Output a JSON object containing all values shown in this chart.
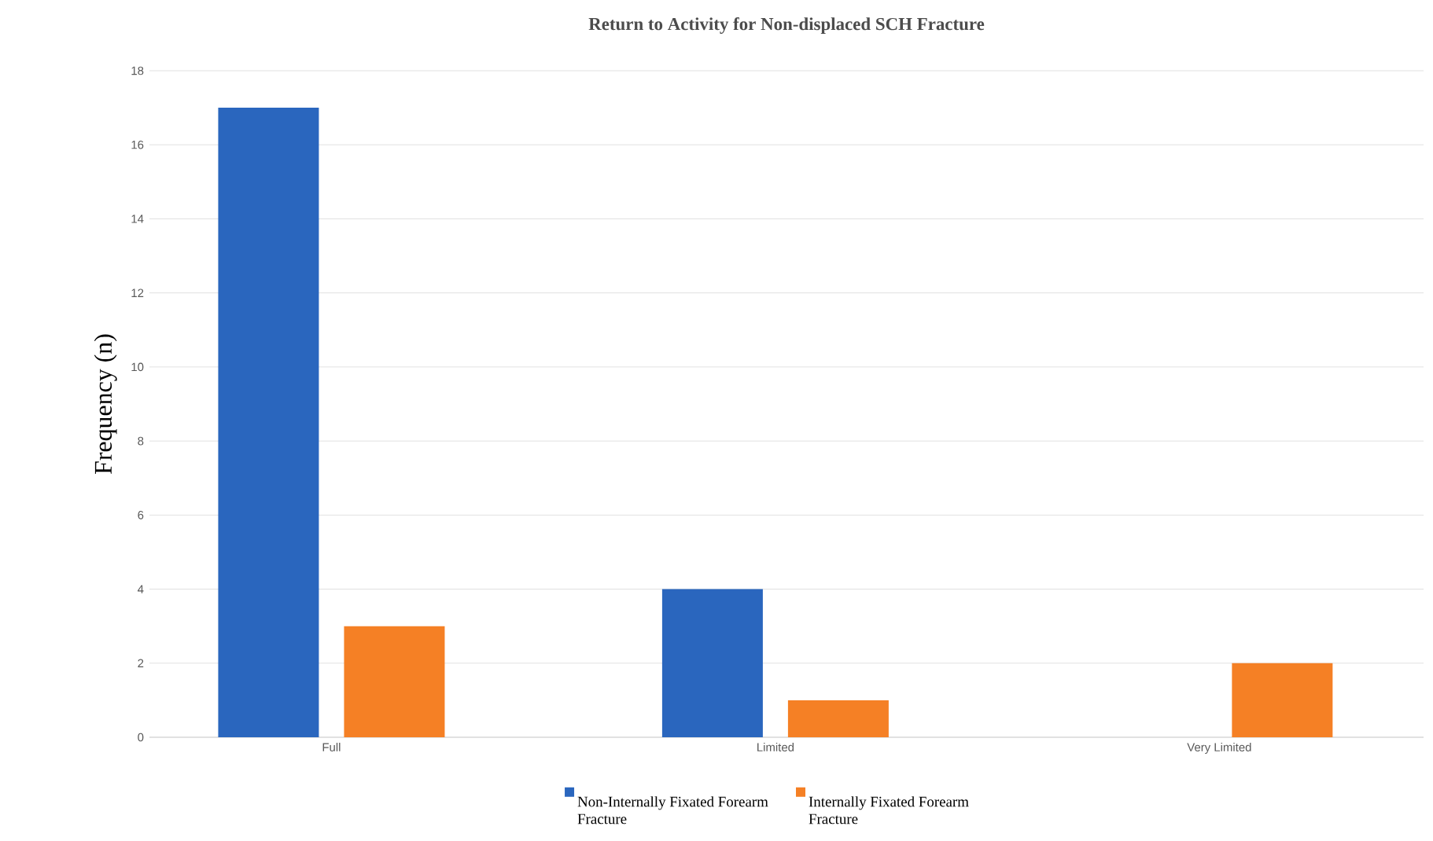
{
  "chart_data": {
    "type": "bar",
    "title": "Return to Activity for Non-displaced SCH Fracture",
    "ylabel": "Frequency (n)",
    "categories": [
      "Full",
      "Limited",
      "Very Limited"
    ],
    "series": [
      {
        "name": "Non-Internally Fixated Forearm Fracture",
        "color": "#2a66be",
        "values": [
          17,
          4,
          0
        ]
      },
      {
        "name": "Internally Fixated Forearm Fracture",
        "color": "#f58025",
        "values": [
          3,
          1,
          2
        ]
      }
    ],
    "ylim": [
      0,
      18
    ],
    "yticks": [
      0,
      2,
      4,
      6,
      8,
      10,
      12,
      14,
      16,
      18
    ],
    "grid": "y",
    "legend": "bottom"
  }
}
